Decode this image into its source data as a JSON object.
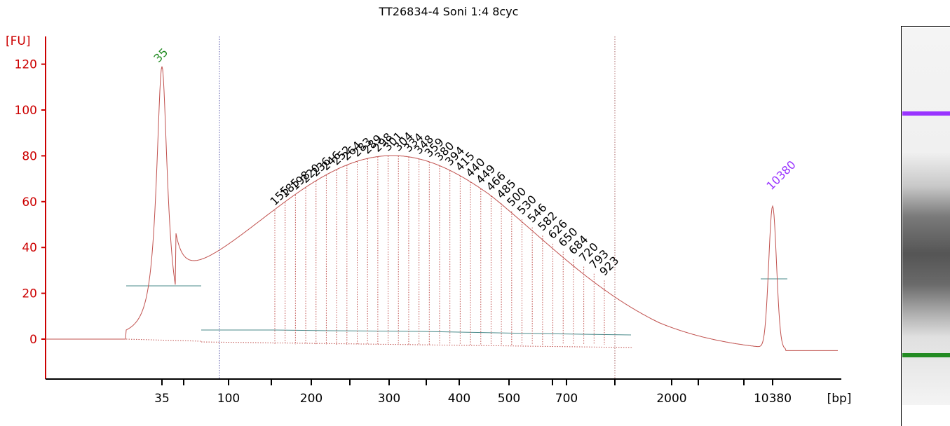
{
  "chart_data": {
    "type": "line",
    "title": "TT26834-4 Soni 1:4 8cyc",
    "ylabel": "[FU]",
    "xlabel": "[bp]",
    "ylim": [
      -18,
      132
    ],
    "yticks": [
      0,
      20,
      40,
      60,
      80,
      100,
      120
    ],
    "x_tick_labels": [
      "35",
      "100",
      "200",
      "300",
      "400",
      "500",
      "700",
      "2000",
      "10380"
    ],
    "marker_peaks": [
      {
        "label": "35",
        "size_bp": 35,
        "height_fu": 119,
        "color": "#228b22"
      },
      {
        "label": "10380",
        "size_bp": 10380,
        "height_fu": 62,
        "color": "#9933ff"
      }
    ],
    "peak_labels": [
      "155",
      "185",
      "198",
      "220",
      "236",
      "246",
      "252",
      "264",
      "283",
      "289",
      "298",
      "301",
      "304",
      "334",
      "348",
      "359",
      "380",
      "394",
      "415",
      "440",
      "449",
      "466",
      "485",
      "500",
      "530",
      "546",
      "582",
      "626",
      "650",
      "684",
      "720",
      "793",
      "923"
    ],
    "line_color": "#c0504d",
    "axis_color": "#cc0000"
  },
  "gel": {
    "upper_marker_color": "#9933ff",
    "lower_marker_color": "#228b22"
  }
}
